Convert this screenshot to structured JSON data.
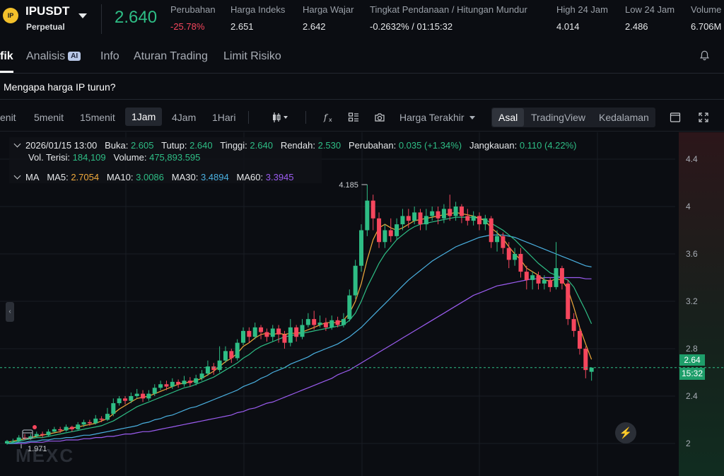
{
  "header": {
    "symbol_logo": "IP",
    "symbol": "IPUSDT",
    "contract_type": "Perpetual",
    "last_price": "2.640",
    "stats": [
      {
        "label": "Perubahan",
        "value": "-25.78%",
        "negative": true
      },
      {
        "label": "Harga Indeks",
        "value": "2.651"
      },
      {
        "label": "Harga Wajar",
        "value": "2.642"
      },
      {
        "label": "Tingkat Pendanaan / Hitungan Mundur",
        "value": "-0.2632% / 01:15:32"
      },
      {
        "label": "High 24 Jam",
        "value": "4.014"
      },
      {
        "label": "Low 24 Jam",
        "value": "2.486"
      },
      {
        "label": "Volume",
        "value": "6.706M"
      }
    ]
  },
  "tabs": {
    "items": [
      "fik",
      "Analisis",
      "Info",
      "Aturan Trading",
      "Limit Risiko"
    ],
    "ai_badge": "AI",
    "active": 0
  },
  "question": "Mengapa harga IP turun?",
  "toolbar": {
    "timeframes": [
      "enit",
      "5menit",
      "15menit",
      "1Jam",
      "4Jam",
      "1Hari"
    ],
    "active_timeframe": 3,
    "price_source": "Harga Terakhir",
    "views": [
      "Asal",
      "TradingView",
      "Kedalaman"
    ],
    "active_view": 0
  },
  "chart_info": {
    "date": "2026/01/15 13:00",
    "open_label": "Buka:",
    "open": "2.605",
    "close_label": "Tutup:",
    "close": "2.640",
    "high_label": "Tinggi:",
    "high": "2.640",
    "low_label": "Rendah:",
    "low": "2.530",
    "change_label": "Perubahan:",
    "change": "0.035 (+1.34%)",
    "range_label": "Jangkauan:",
    "range": "0.110 (4.22%)",
    "filled_vol_label": "Vol. Terisi:",
    "filled_vol": "184,109",
    "volume_label": "Volume:",
    "volume": "475,893.595",
    "ma_label": "MA",
    "ma": [
      {
        "label": "MA5:",
        "value": "2.7054",
        "color": "#f0a93b"
      },
      {
        "label": "MA10:",
        "value": "3.0086",
        "color": "#2ebd85"
      },
      {
        "label": "MA30:",
        "value": "3.4894",
        "color": "#4ab0e0"
      },
      {
        "label": "MA60:",
        "value": "3.3945",
        "color": "#9b5cf0"
      }
    ]
  },
  "chart_data": {
    "type": "candlestick",
    "y_ticks": [
      "4.4",
      "4",
      "3.6",
      "3.2",
      "2.8",
      "2.4",
      "2"
    ],
    "ylim": [
      1.8,
      4.6
    ],
    "high_marker": "4.185",
    "low_marker": "1.971",
    "current_price": "2.64",
    "countdown": "15:32",
    "watermark": "MEXC",
    "colors": {
      "up": "#2ebd85",
      "down": "#f6465d",
      "ma5": "#f0a93b",
      "ma10": "#2ebd85",
      "ma30": "#4ab0e0",
      "ma60": "#9b5cf0"
    },
    "candles": [
      [
        2.0,
        2.02,
        1.99,
        2.03
      ],
      [
        2.02,
        2.02,
        2.0,
        2.04
      ],
      [
        2.02,
        2.05,
        2.01,
        2.07
      ],
      [
        2.05,
        2.04,
        2.03,
        2.08
      ],
      [
        2.04,
        2.06,
        2.03,
        2.08
      ],
      [
        2.06,
        2.08,
        2.05,
        2.1
      ],
      [
        2.08,
        2.07,
        2.05,
        2.1
      ],
      [
        2.07,
        2.1,
        2.06,
        2.12
      ],
      [
        2.1,
        2.12,
        2.09,
        2.14
      ],
      [
        2.12,
        2.11,
        2.09,
        2.14
      ],
      [
        2.11,
        2.14,
        2.1,
        2.16
      ],
      [
        2.14,
        2.12,
        2.1,
        2.15
      ],
      [
        2.12,
        2.16,
        2.11,
        2.18
      ],
      [
        2.16,
        2.18,
        2.14,
        2.2
      ],
      [
        2.18,
        2.17,
        2.15,
        2.2
      ],
      [
        2.17,
        2.21,
        2.16,
        2.24
      ],
      [
        2.21,
        2.2,
        2.18,
        2.23
      ],
      [
        2.2,
        2.25,
        2.19,
        2.3
      ],
      [
        2.25,
        2.34,
        2.23,
        2.38
      ],
      [
        2.34,
        2.38,
        2.32,
        2.4
      ],
      [
        2.38,
        2.36,
        2.33,
        2.4
      ],
      [
        2.36,
        2.4,
        2.34,
        2.43
      ],
      [
        2.4,
        2.42,
        2.38,
        2.46
      ],
      [
        2.42,
        2.38,
        2.35,
        2.45
      ],
      [
        2.38,
        2.42,
        2.36,
        2.45
      ],
      [
        2.42,
        2.47,
        2.4,
        2.5
      ],
      [
        2.47,
        2.5,
        2.45,
        2.53
      ],
      [
        2.5,
        2.48,
        2.45,
        2.53
      ],
      [
        2.48,
        2.52,
        2.46,
        2.55
      ],
      [
        2.52,
        2.5,
        2.47,
        2.54
      ],
      [
        2.5,
        2.53,
        2.48,
        2.57
      ],
      [
        2.53,
        2.51,
        2.48,
        2.56
      ],
      [
        2.51,
        2.55,
        2.49,
        2.58
      ],
      [
        2.55,
        2.59,
        2.53,
        2.62
      ],
      [
        2.59,
        2.65,
        2.57,
        2.7
      ],
      [
        2.65,
        2.62,
        2.58,
        2.68
      ],
      [
        2.62,
        2.7,
        2.6,
        2.82
      ],
      [
        2.7,
        2.78,
        2.68,
        2.82
      ],
      [
        2.78,
        2.72,
        2.68,
        2.8
      ],
      [
        2.72,
        2.85,
        2.7,
        2.88
      ],
      [
        2.85,
        2.95,
        2.83,
        2.98
      ],
      [
        2.95,
        2.9,
        2.85,
        2.98
      ],
      [
        2.9,
        2.98,
        2.88,
        3.02
      ],
      [
        2.98,
        2.94,
        2.88,
        3.0
      ],
      [
        2.94,
        2.9,
        2.86,
        2.97
      ],
      [
        2.9,
        2.97,
        2.86,
        3.0
      ],
      [
        2.97,
        2.92,
        2.85,
        3.0
      ],
      [
        2.92,
        2.85,
        2.8,
        2.95
      ],
      [
        2.85,
        2.98,
        2.82,
        3.05
      ],
      [
        2.98,
        2.9,
        2.86,
        3.0
      ],
      [
        2.9,
        3.0,
        2.88,
        3.05
      ],
      [
        3.0,
        3.05,
        2.98,
        3.1
      ],
      [
        3.05,
        3.0,
        2.96,
        3.12
      ],
      [
        3.0,
        3.02,
        2.98,
        3.08
      ],
      [
        3.02,
        2.98,
        2.95,
        3.06
      ],
      [
        2.98,
        3.04,
        2.96,
        3.08
      ],
      [
        3.04,
        3.0,
        2.98,
        3.07
      ],
      [
        3.0,
        3.05,
        2.98,
        3.1
      ],
      [
        3.05,
        3.25,
        3.03,
        3.3
      ],
      [
        3.25,
        3.5,
        3.22,
        3.55
      ],
      [
        3.5,
        3.8,
        3.45,
        3.85
      ],
      [
        3.8,
        4.05,
        3.75,
        4.185
      ],
      [
        4.05,
        3.9,
        3.8,
        4.1
      ],
      [
        3.9,
        3.7,
        3.65,
        3.95
      ],
      [
        3.7,
        3.8,
        3.65,
        3.85
      ],
      [
        3.8,
        3.75,
        3.7,
        3.9
      ],
      [
        3.75,
        3.85,
        3.72,
        3.9
      ],
      [
        3.85,
        3.92,
        3.8,
        3.98
      ],
      [
        3.92,
        3.88,
        3.82,
        3.98
      ],
      [
        3.88,
        3.95,
        3.85,
        4.0
      ],
      [
        3.95,
        3.85,
        3.8,
        3.98
      ],
      [
        3.85,
        3.92,
        3.8,
        3.98
      ],
      [
        3.92,
        3.96,
        3.88,
        4.0
      ],
      [
        3.96,
        3.9,
        3.85,
        4.0
      ],
      [
        3.9,
        3.98,
        3.86,
        4.02
      ],
      [
        3.98,
        3.92,
        3.88,
        4.1
      ],
      [
        3.92,
        4.0,
        3.88,
        4.04
      ],
      [
        4.0,
        3.92,
        3.86,
        4.02
      ],
      [
        3.92,
        3.88,
        3.84,
        3.98
      ],
      [
        3.88,
        3.92,
        3.84,
        3.96
      ],
      [
        3.92,
        3.85,
        3.8,
        3.95
      ],
      [
        3.85,
        3.9,
        3.8,
        3.93
      ],
      [
        3.9,
        3.7,
        3.65,
        3.92
      ],
      [
        3.7,
        3.75,
        3.62,
        3.8
      ],
      [
        3.75,
        3.65,
        3.6,
        3.78
      ],
      [
        3.65,
        3.55,
        3.48,
        3.7
      ],
      [
        3.55,
        3.6,
        3.5,
        3.65
      ],
      [
        3.6,
        3.45,
        3.4,
        3.65
      ],
      [
        3.45,
        3.38,
        3.3,
        3.5
      ],
      [
        3.38,
        3.42,
        3.3,
        3.45
      ],
      [
        3.42,
        3.35,
        3.3,
        3.45
      ],
      [
        3.35,
        3.38,
        3.3,
        3.42
      ],
      [
        3.38,
        3.32,
        3.28,
        3.4
      ],
      [
        3.32,
        3.48,
        3.3,
        3.7
      ],
      [
        3.48,
        3.35,
        3.3,
        3.5
      ],
      [
        3.35,
        3.05,
        3.0,
        3.38
      ],
      [
        3.05,
        2.95,
        2.9,
        3.1
      ],
      [
        2.95,
        2.8,
        2.75,
        2.98
      ],
      [
        2.8,
        2.62,
        2.55,
        2.82
      ],
      [
        2.605,
        2.64,
        2.53,
        2.64
      ]
    ],
    "ma5": [
      2.01,
      2.02,
      2.03,
      2.04,
      2.05,
      2.06,
      2.07,
      2.08,
      2.09,
      2.1,
      2.12,
      2.13,
      2.14,
      2.15,
      2.16,
      2.17,
      2.19,
      2.21,
      2.25,
      2.29,
      2.32,
      2.35,
      2.38,
      2.39,
      2.4,
      2.42,
      2.44,
      2.46,
      2.48,
      2.5,
      2.51,
      2.52,
      2.53,
      2.55,
      2.58,
      2.61,
      2.65,
      2.69,
      2.72,
      2.76,
      2.82,
      2.85,
      2.89,
      2.92,
      2.93,
      2.92,
      2.93,
      2.92,
      2.93,
      2.93,
      2.94,
      2.96,
      2.98,
      3.0,
      3.02,
      3.02,
      3.02,
      3.04,
      3.1,
      3.2,
      3.35,
      3.55,
      3.72,
      3.82,
      3.85,
      3.82,
      3.8,
      3.82,
      3.85,
      3.88,
      3.89,
      3.9,
      3.91,
      3.92,
      3.93,
      3.94,
      3.95,
      3.94,
      3.93,
      3.92,
      3.9,
      3.88,
      3.82,
      3.78,
      3.73,
      3.66,
      3.6,
      3.55,
      3.48,
      3.45,
      3.42,
      3.38,
      3.37,
      3.39,
      3.38,
      3.3,
      3.15,
      2.98,
      2.84,
      2.71
    ],
    "ma10": [
      2.0,
      2.01,
      2.02,
      2.03,
      2.04,
      2.05,
      2.05,
      2.06,
      2.07,
      2.08,
      2.09,
      2.1,
      2.11,
      2.12,
      2.13,
      2.14,
      2.15,
      2.17,
      2.19,
      2.22,
      2.25,
      2.28,
      2.31,
      2.33,
      2.35,
      2.37,
      2.39,
      2.41,
      2.43,
      2.45,
      2.47,
      2.48,
      2.5,
      2.52,
      2.54,
      2.56,
      2.59,
      2.62,
      2.65,
      2.68,
      2.72,
      2.75,
      2.79,
      2.82,
      2.84,
      2.86,
      2.88,
      2.9,
      2.91,
      2.92,
      2.93,
      2.94,
      2.95,
      2.96,
      2.97,
      2.98,
      2.99,
      3.0,
      3.04,
      3.1,
      3.2,
      3.32,
      3.42,
      3.52,
      3.6,
      3.66,
      3.72,
      3.76,
      3.8,
      3.83,
      3.85,
      3.86,
      3.87,
      3.88,
      3.89,
      3.9,
      3.91,
      3.91,
      3.91,
      3.91,
      3.9,
      3.89,
      3.86,
      3.83,
      3.8,
      3.76,
      3.72,
      3.67,
      3.62,
      3.57,
      3.52,
      3.48,
      3.44,
      3.42,
      3.4,
      3.38,
      3.32,
      3.22,
      3.12,
      3.01
    ],
    "ma30": [
      2.0,
      2.0,
      2.01,
      2.01,
      2.02,
      2.02,
      2.03,
      2.03,
      2.04,
      2.04,
      2.05,
      2.05,
      2.06,
      2.07,
      2.07,
      2.08,
      2.09,
      2.1,
      2.11,
      2.12,
      2.13,
      2.14,
      2.15,
      2.17,
      2.18,
      2.2,
      2.21,
      2.23,
      2.24,
      2.26,
      2.28,
      2.3,
      2.31,
      2.33,
      2.35,
      2.37,
      2.39,
      2.41,
      2.43,
      2.45,
      2.48,
      2.5,
      2.52,
      2.55,
      2.57,
      2.6,
      2.62,
      2.64,
      2.67,
      2.69,
      2.71,
      2.73,
      2.76,
      2.78,
      2.8,
      2.82,
      2.84,
      2.87,
      2.9,
      2.94,
      2.98,
      3.03,
      3.08,
      3.13,
      3.18,
      3.23,
      3.28,
      3.33,
      3.38,
      3.42,
      3.46,
      3.5,
      3.54,
      3.57,
      3.6,
      3.63,
      3.66,
      3.68,
      3.7,
      3.72,
      3.74,
      3.75,
      3.76,
      3.76,
      3.76,
      3.75,
      3.74,
      3.72,
      3.7,
      3.68,
      3.66,
      3.64,
      3.62,
      3.6,
      3.58,
      3.56,
      3.54,
      3.52,
      3.5,
      3.49
    ],
    "ma60": [
      2.0,
      2.0,
      2.0,
      2.0,
      2.01,
      2.01,
      2.01,
      2.02,
      2.02,
      2.02,
      2.03,
      2.03,
      2.03,
      2.04,
      2.04,
      2.05,
      2.05,
      2.06,
      2.06,
      2.07,
      2.08,
      2.08,
      2.09,
      2.1,
      2.1,
      2.11,
      2.12,
      2.13,
      2.14,
      2.15,
      2.16,
      2.17,
      2.18,
      2.19,
      2.2,
      2.21,
      2.22,
      2.23,
      2.24,
      2.26,
      2.27,
      2.29,
      2.3,
      2.32,
      2.34,
      2.35,
      2.37,
      2.39,
      2.41,
      2.43,
      2.45,
      2.47,
      2.49,
      2.51,
      2.53,
      2.55,
      2.58,
      2.6,
      2.62,
      2.65,
      2.68,
      2.71,
      2.74,
      2.77,
      2.8,
      2.83,
      2.86,
      2.89,
      2.92,
      2.95,
      2.98,
      3.01,
      3.04,
      3.07,
      3.1,
      3.13,
      3.16,
      3.19,
      3.22,
      3.25,
      3.27,
      3.29,
      3.31,
      3.33,
      3.34,
      3.35,
      3.36,
      3.37,
      3.38,
      3.39,
      3.39,
      3.4,
      3.4,
      3.4,
      3.4,
      3.4,
      3.4,
      3.4,
      3.39,
      3.39
    ]
  }
}
